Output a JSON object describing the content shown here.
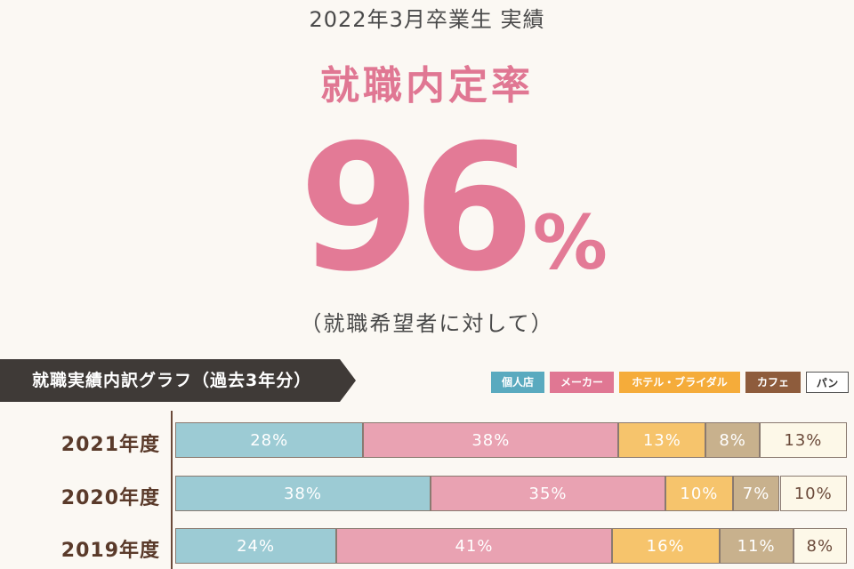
{
  "header": {
    "subtitle": "2022年3月卒業生 実績",
    "heading": "就職内定率",
    "rate_value": "96",
    "rate_unit": "%",
    "rate_note": "（就職希望者に対して）"
  },
  "graph_title": "就職実績内訳グラフ（過去3年分）",
  "colors": {
    "個人店": "#9ccbd4",
    "メーカー": "#e9a2b2",
    "ホテル・ブライダル": "#f6c46c",
    "カフェ": "#c8b18d",
    "パン": "#fdf8e8"
  },
  "chart_data": {
    "type": "bar",
    "orientation": "horizontal",
    "stacked": true,
    "unit": "%",
    "categories": [
      "2021年度",
      "2020年度",
      "2019年度"
    ],
    "series": [
      {
        "name": "個人店",
        "values": [
          28,
          38,
          24
        ]
      },
      {
        "name": "メーカー",
        "values": [
          38,
          35,
          41
        ]
      },
      {
        "name": "ホテル・ブライダル",
        "values": [
          13,
          10,
          16
        ]
      },
      {
        "name": "カフェ",
        "values": [
          8,
          7,
          11
        ]
      },
      {
        "name": "パン",
        "values": [
          13,
          10,
          8
        ]
      }
    ],
    "legend": {
      "position": "top-right",
      "items": [
        {
          "label": "個人店",
          "color": "#5aaabf",
          "text_color": "#ffffff"
        },
        {
          "label": "メーカー",
          "color": "#e07793",
          "text_color": "#ffffff"
        },
        {
          "label": "ホテル・ブライダル",
          "color": "#f5ac3a",
          "text_color": "#ffffff"
        },
        {
          "label": "カフェ",
          "color": "#8e5c3c",
          "text_color": "#ffffff"
        },
        {
          "label": "パン",
          "color": "#ffffff",
          "text_color": "#333333"
        }
      ]
    }
  }
}
